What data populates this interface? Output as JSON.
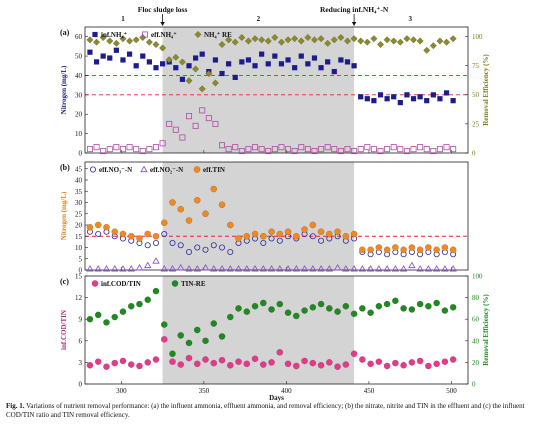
{
  "figure": {
    "phase_labels": [
      "1",
      "2",
      "3"
    ],
    "event_labels": [
      "Floc sludge loss",
      "Reducing inf.NH₄⁺-N"
    ],
    "x_label": "Days",
    "x_ticks": [
      "300",
      "350",
      "400",
      "450",
      "500"
    ]
  },
  "caption": {
    "label": "Fig. 1.",
    "text": "Variations of nutrient removal performance: (a) the influent ammonia, effluent ammonia, and removal efficiency; (b) the nitrate, nitrite and TIN in the effluent and (c) the influent COD/TIN ratio and TIN removal efficiency."
  },
  "colors": {
    "shade": "#d4d4d4",
    "ref_line": "#e8222b",
    "inf_nh4": "#1c1c8c",
    "eff_nh4": "#b04aa8",
    "nh4_re": "#8c8a2e",
    "eff_no3": "#2a2a9a",
    "eff_no2": "#8a4ad0",
    "eff_tin": "#f08a20",
    "cod_tin": "#e8388a",
    "tin_re": "#1f8a1f",
    "left_axis_a": "#1c1c8c",
    "left_axis_b": "#e8801a",
    "left_axis_c": "#c0207a",
    "right_axis_a": "#7c7c1c",
    "right_axis_c": "#1f8a1f"
  },
  "chart_data": [
    {
      "panel": "(a)",
      "type": "scatter",
      "xlim": [
        278,
        510
      ],
      "ylim": [
        0,
        65
      ],
      "y2lim": [
        0,
        108
      ],
      "ylabel": "Nitrogen (mg/L)",
      "y2label": "Removal  Efficiency (%)",
      "yticks": [
        0,
        10,
        20,
        30,
        40,
        50,
        60
      ],
      "y2ticks": [
        0,
        25,
        50,
        75,
        100
      ],
      "shaded_range": [
        325,
        441
      ],
      "ref_lines": [
        40,
        30
      ],
      "legend_position": "top-left",
      "series": [
        {
          "name": "inf.NH₄⁺",
          "marker": "square-filled",
          "axis": "left",
          "x": [
            281,
            285,
            289,
            293,
            297,
            301,
            305,
            309,
            313,
            317,
            321,
            325,
            329,
            333,
            337,
            341,
            345,
            349,
            353,
            357,
            361,
            365,
            369,
            373,
            377,
            381,
            385,
            389,
            393,
            397,
            401,
            405,
            409,
            413,
            417,
            421,
            425,
            429,
            433,
            437,
            441,
            445,
            449,
            453,
            457,
            461,
            465,
            469,
            473,
            477,
            481,
            485,
            489,
            493,
            497,
            501
          ],
          "y": [
            52,
            47,
            50,
            49,
            53,
            48,
            51,
            45,
            50,
            47,
            44,
            46,
            47,
            44,
            38,
            45,
            49,
            51,
            42,
            48,
            41,
            46,
            39,
            47,
            48,
            45,
            51,
            46,
            50,
            46,
            48,
            44,
            50,
            46,
            49,
            44,
            47,
            42,
            48,
            47,
            45,
            29,
            28,
            27,
            30,
            28,
            29,
            26,
            30,
            28,
            29,
            27,
            30,
            28,
            31,
            27
          ]
        },
        {
          "name": "eff.NH₄⁺",
          "marker": "square-open",
          "axis": "left",
          "x": [
            281,
            285,
            289,
            293,
            297,
            301,
            305,
            309,
            313,
            317,
            321,
            325,
            329,
            333,
            337,
            341,
            345,
            349,
            353,
            357,
            361,
            365,
            369,
            373,
            377,
            381,
            385,
            389,
            393,
            397,
            401,
            405,
            409,
            413,
            417,
            421,
            425,
            429,
            433,
            437,
            441,
            445,
            449,
            453,
            457,
            461,
            465,
            469,
            473,
            477,
            481,
            485,
            489,
            493,
            497,
            501
          ],
          "y": [
            2,
            3,
            1,
            2,
            3,
            2,
            3,
            2,
            1,
            2,
            3,
            5,
            15,
            12,
            8,
            19,
            14,
            22,
            18,
            15,
            4,
            2,
            3,
            1,
            2,
            3,
            2,
            1,
            2,
            3,
            2,
            1,
            3,
            2,
            1,
            2,
            3,
            2,
            1,
            2,
            1,
            2,
            3,
            2,
            1,
            2,
            3,
            2,
            1,
            2,
            3,
            2,
            1,
            2,
            3,
            2
          ]
        },
        {
          "name": "NH₄⁺ RE",
          "marker": "diamond-filled",
          "axis": "right",
          "x": [
            281,
            285,
            289,
            293,
            297,
            301,
            305,
            309,
            313,
            317,
            321,
            325,
            329,
            333,
            337,
            341,
            345,
            349,
            353,
            357,
            361,
            365,
            369,
            373,
            377,
            381,
            385,
            389,
            393,
            397,
            401,
            405,
            409,
            413,
            417,
            421,
            425,
            429,
            433,
            437,
            441,
            445,
            449,
            453,
            457,
            461,
            465,
            469,
            473,
            477,
            481,
            485,
            489,
            493,
            497,
            501
          ],
          "y": [
            97,
            95,
            99,
            96,
            94,
            98,
            96,
            97,
            99,
            95,
            93,
            90,
            80,
            82,
            78,
            62,
            72,
            55,
            68,
            60,
            93,
            97,
            95,
            99,
            96,
            98,
            97,
            96,
            99,
            95,
            97,
            98,
            96,
            99,
            97,
            98,
            94,
            97,
            99,
            96,
            98,
            96,
            95,
            98,
            93,
            97,
            96,
            95,
            98,
            97,
            96,
            88,
            92,
            96,
            95,
            98
          ]
        }
      ]
    },
    {
      "panel": "(b)",
      "type": "scatter",
      "xlim": [
        278,
        510
      ],
      "ylim": [
        0,
        48
      ],
      "ylabel": "Nitrogen (mg/L)",
      "yticks": [
        0,
        5,
        10,
        15,
        20,
        25,
        30,
        35,
        40,
        45
      ],
      "shaded_range": [
        325,
        441
      ],
      "ref_lines": [
        15
      ],
      "legend_position": "top-left",
      "series": [
        {
          "name": "eff.NO₃⁻-N",
          "marker": "circle-open",
          "axis": "left",
          "x": [
            281,
            286,
            291,
            296,
            301,
            306,
            311,
            316,
            321,
            326,
            331,
            336,
            341,
            346,
            351,
            356,
            361,
            366,
            371,
            376,
            381,
            386,
            391,
            396,
            401,
            406,
            411,
            416,
            421,
            426,
            431,
            436,
            441,
            446,
            451,
            456,
            461,
            466,
            471,
            476,
            481,
            486,
            491,
            496,
            501
          ],
          "y": [
            17,
            16,
            17,
            15,
            14,
            13,
            12,
            11,
            12,
            16,
            12,
            11,
            8,
            10,
            9,
            11,
            10,
            8,
            12,
            13,
            14,
            12,
            14,
            13,
            15,
            14,
            16,
            15,
            13,
            14,
            15,
            13,
            14,
            8,
            7,
            8,
            7,
            8,
            7,
            8,
            7,
            8,
            7,
            8,
            7
          ]
        },
        {
          "name": "eff.NO₂⁻-N",
          "marker": "triangle-open",
          "axis": "left",
          "x": [
            281,
            286,
            291,
            296,
            301,
            306,
            311,
            316,
            321,
            326,
            331,
            336,
            341,
            346,
            351,
            356,
            361,
            366,
            371,
            376,
            381,
            386,
            391,
            396,
            401,
            406,
            411,
            416,
            421,
            426,
            431,
            436,
            441,
            446,
            451,
            456,
            461,
            466,
            471,
            476,
            481,
            486,
            491,
            496,
            501
          ],
          "y": [
            0.5,
            0.5,
            0.5,
            0.5,
            0.5,
            0.5,
            1,
            2,
            4,
            0.5,
            0.5,
            1,
            0.5,
            0.5,
            1,
            0.5,
            0.5,
            0.5,
            0.5,
            0.5,
            0.5,
            0.5,
            0.5,
            0.5,
            0.5,
            0.5,
            0.5,
            0.5,
            0.5,
            0.5,
            1,
            0.5,
            0.5,
            0.5,
            0.5,
            0.5,
            0.5,
            0.5,
            0.5,
            2,
            0.5,
            0.5,
            0.5,
            0.5,
            0.5
          ]
        },
        {
          "name": "eff.TIN",
          "marker": "circle-filled",
          "axis": "left",
          "x": [
            281,
            286,
            291,
            296,
            301,
            306,
            311,
            316,
            321,
            326,
            331,
            336,
            341,
            346,
            351,
            356,
            361,
            366,
            371,
            376,
            381,
            386,
            391,
            396,
            401,
            406,
            411,
            416,
            421,
            426,
            431,
            436,
            441,
            446,
            451,
            456,
            461,
            466,
            471,
            476,
            481,
            486,
            491,
            496,
            501
          ],
          "y": [
            19,
            20,
            19,
            17,
            16,
            15,
            14,
            16,
            15,
            21,
            30,
            27,
            22,
            31,
            25,
            36,
            29,
            20,
            14,
            15,
            16,
            15,
            17,
            16,
            17,
            15,
            18,
            20,
            17,
            16,
            17,
            15,
            16,
            9,
            9,
            10,
            9,
            10,
            9,
            10,
            9,
            10,
            9,
            10,
            9
          ]
        }
      ]
    },
    {
      "panel": "(c)",
      "type": "scatter",
      "xlim": [
        278,
        510
      ],
      "ylim": [
        0,
        15
      ],
      "y2lim": [
        0,
        100
      ],
      "ylabel": "inf.COD/TIN",
      "y2label": "Removal  Efficiency (%)",
      "xlabel": "Days",
      "xticks": [
        300,
        350,
        400,
        450,
        500
      ],
      "yticks": [
        0,
        3,
        6,
        9,
        12,
        15
      ],
      "y2ticks": [
        0,
        20,
        40,
        60,
        80,
        100
      ],
      "shaded_range": [
        325,
        441
      ],
      "legend_position": "top-left",
      "series": [
        {
          "name": "inf.COD/TIN",
          "marker": "circle-filled",
          "axis": "left",
          "x": [
            281,
            286,
            291,
            296,
            301,
            306,
            311,
            316,
            321,
            326,
            331,
            336,
            341,
            346,
            351,
            356,
            361,
            366,
            371,
            376,
            381,
            386,
            391,
            396,
            401,
            406,
            411,
            416,
            421,
            426,
            431,
            436,
            441,
            446,
            451,
            456,
            461,
            466,
            471,
            476,
            481,
            486,
            491,
            496,
            501
          ],
          "y": [
            2.6,
            3.1,
            2.4,
            2.9,
            3.2,
            2.7,
            2.5,
            3.0,
            3.4,
            6.2,
            3.1,
            2.7,
            3.6,
            2.8,
            3.4,
            2.9,
            3.3,
            2.6,
            3.1,
            2.8,
            3.5,
            2.7,
            3.0,
            4.4,
            2.8,
            2.5,
            3.2,
            2.9,
            2.6,
            3.0,
            2.4,
            2.7,
            4.2,
            3.4,
            2.8,
            3.1,
            2.5,
            2.9,
            2.6,
            3.0,
            3.2,
            2.5,
            2.8,
            3.1,
            3.4
          ]
        },
        {
          "name": "TIN-RE",
          "marker": "circle-filled",
          "axis": "right",
          "x": [
            281,
            286,
            291,
            296,
            301,
            306,
            311,
            316,
            321,
            326,
            331,
            336,
            341,
            346,
            351,
            356,
            361,
            366,
            371,
            376,
            381,
            386,
            391,
            396,
            401,
            406,
            411,
            416,
            421,
            426,
            431,
            436,
            441,
            446,
            451,
            456,
            461,
            466,
            471,
            476,
            481,
            486,
            491,
            496,
            501
          ],
          "y": [
            60,
            64,
            57,
            62,
            67,
            72,
            74,
            78,
            86,
            55,
            28,
            45,
            38,
            50,
            40,
            56,
            44,
            62,
            70,
            67,
            72,
            75,
            69,
            74,
            66,
            63,
            68,
            71,
            74,
            70,
            67,
            72,
            65,
            70,
            66,
            72,
            74,
            77,
            70,
            69,
            74,
            72,
            75,
            68,
            71
          ]
        }
      ]
    }
  ]
}
